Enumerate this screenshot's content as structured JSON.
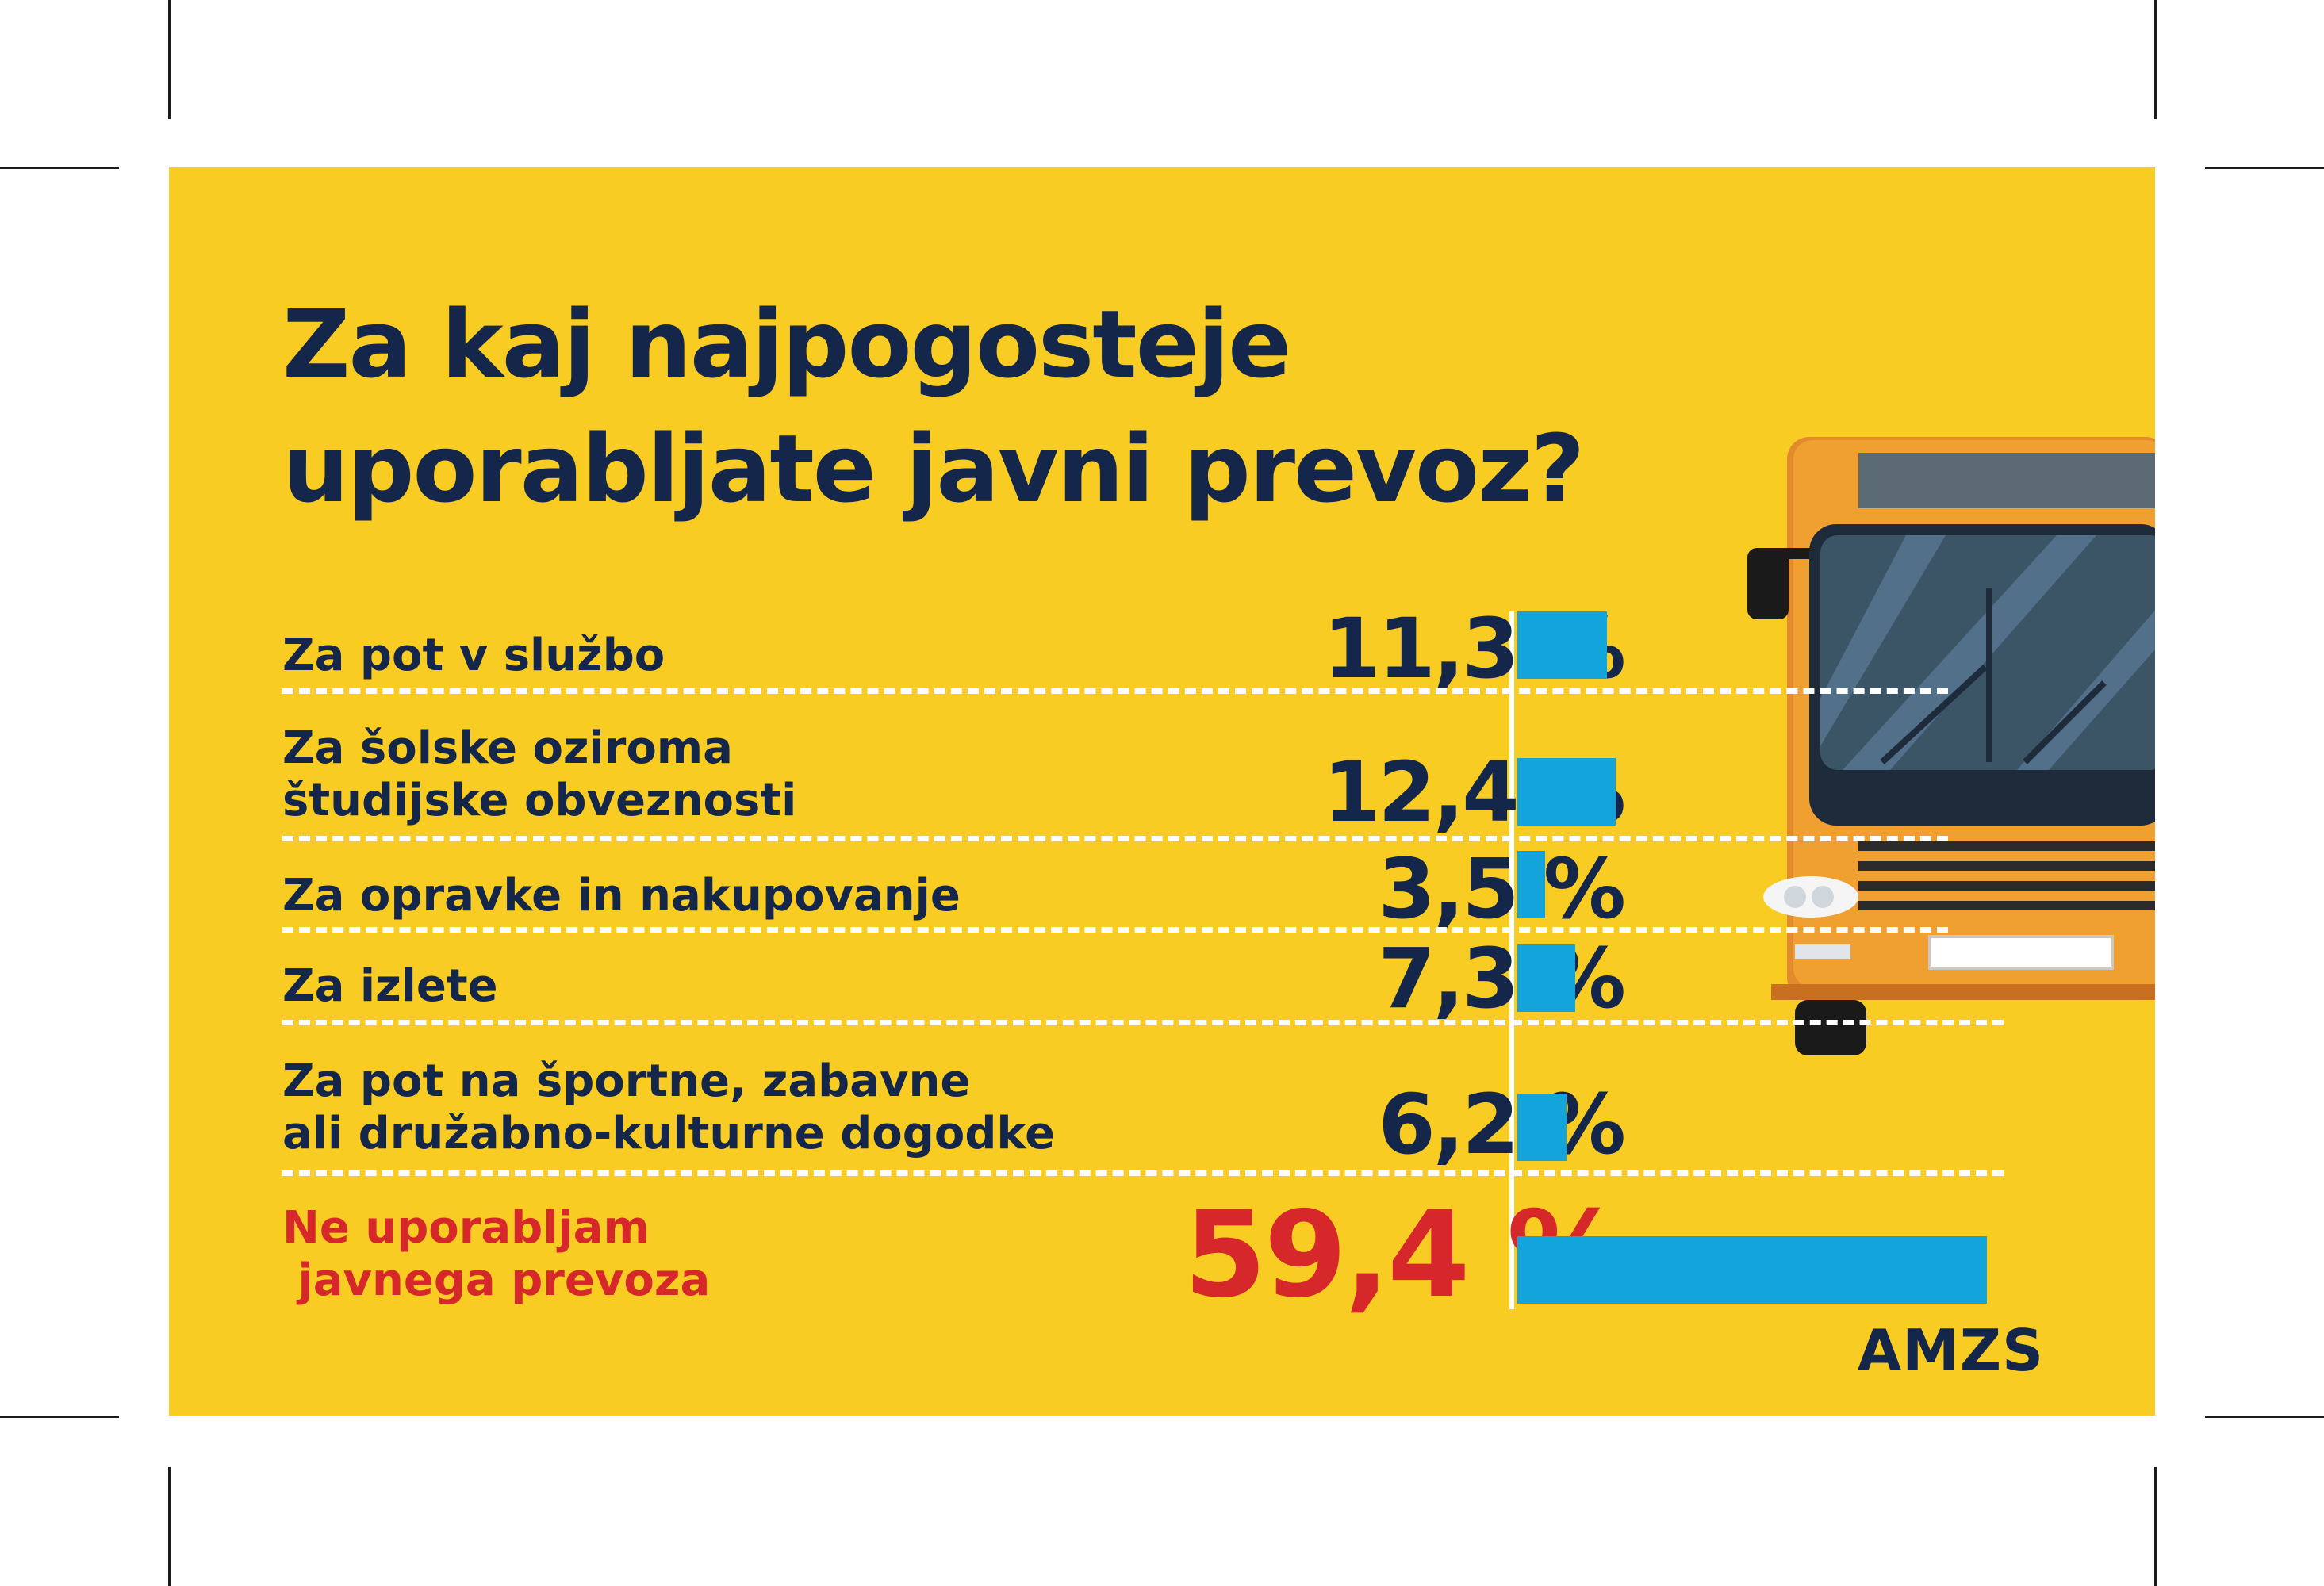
{
  "title_lines": [
    "Za kaj najpogosteje",
    "uporabljate javni prevoz?"
  ],
  "chart_data": {
    "type": "bar",
    "orientation": "horizontal",
    "title": "Za kaj najpogosteje uporabljate javni prevoz?",
    "categories": [
      "Za pot v službo",
      "Za šolske oziroma študijske obveznosti",
      "Za opravke in nakupovanje",
      "Za izlete",
      "Za pot na športne, zabavne ali družabno-kulturne dogodke",
      "Ne uporabljam javnega prevoza"
    ],
    "values": [
      11.3,
      12.4,
      3.5,
      7.3,
      6.2,
      59.4
    ],
    "value_labels": [
      "11,3 %",
      "12,4 %",
      "3,5 %",
      "7,3 %",
      "6,2 %",
      "59,4 %"
    ],
    "unit": "%",
    "xlim": [
      0,
      60
    ],
    "highlighted_category": "Ne uporabljam javnega prevoza"
  },
  "rows": [
    {
      "label_lines": [
        "Za pot v službo"
      ],
      "value_label": "11,3 %"
    },
    {
      "label_lines": [
        "Za šolske oziroma",
        "študijske obveznosti"
      ],
      "value_label": "12,4 %"
    },
    {
      "label_lines": [
        "Za opravke in nakupovanje"
      ],
      "value_label": "3,5 %"
    },
    {
      "label_lines": [
        "Za izlete"
      ],
      "value_label": "7,3 %"
    },
    {
      "label_lines": [
        "Za pot na športne, zabavne",
        "ali družabno-kulturne dogodke"
      ],
      "value_label": "6,2 %"
    },
    {
      "label_lines": [
        "Ne uporabljam",
        " javnega prevoza"
      ],
      "value_label": "59,4 %"
    }
  ],
  "brand": "AMZS",
  "colors": {
    "background": "#f8cc22",
    "text": "#14264a",
    "highlight": "#d6272a",
    "bar": "#14a4dc",
    "bus_body": "#f0a030"
  },
  "illustration": "bus-front-icon"
}
